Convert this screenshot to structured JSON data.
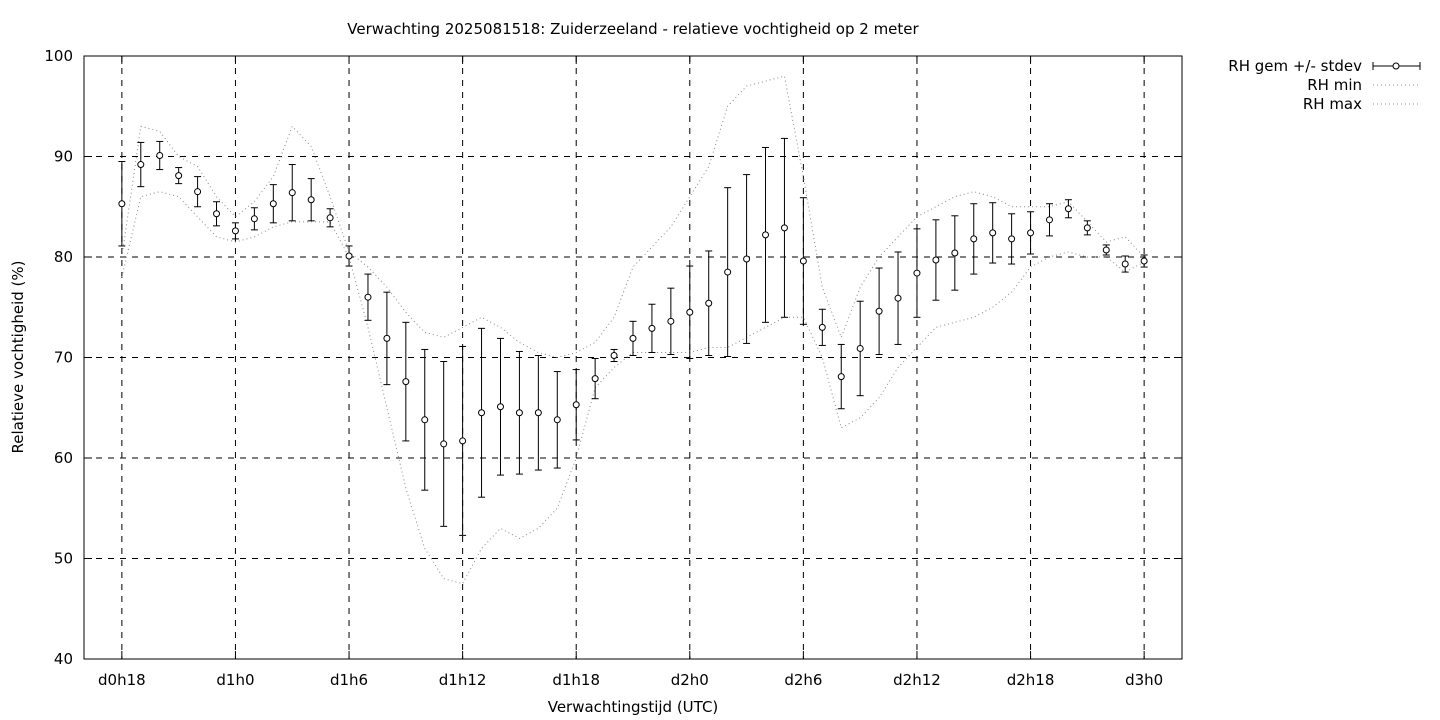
{
  "chart_data": {
    "type": "line",
    "title": "Verwachting 2025081518: Zuiderzeeland - relatieve vochtigheid op 2 meter",
    "xlabel": "Verwachtingstijd (UTC)",
    "ylabel": "Relatieve vochtigheid (%)",
    "ylim": [
      40,
      100
    ],
    "xlim": [
      -2,
      56
    ],
    "grid": true,
    "legend_position": "outside-top-right",
    "x_ticks": [
      {
        "x": 0,
        "label": "d0h18"
      },
      {
        "x": 6,
        "label": "d1h0"
      },
      {
        "x": 12,
        "label": "d1h6"
      },
      {
        "x": 18,
        "label": "d1h12"
      },
      {
        "x": 24,
        "label": "d1h18"
      },
      {
        "x": 30,
        "label": "d2h0"
      },
      {
        "x": 36,
        "label": "d2h6"
      },
      {
        "x": 42,
        "label": "d2h12"
      },
      {
        "x": 48,
        "label": "d2h18"
      },
      {
        "x": 54,
        "label": "d3h0"
      }
    ],
    "y_ticks": [
      40,
      50,
      60,
      70,
      80,
      90,
      100
    ],
    "x": [
      0,
      1,
      2,
      3,
      4,
      5,
      6,
      7,
      8,
      9,
      10,
      11,
      12,
      13,
      14,
      15,
      16,
      17,
      18,
      19,
      20,
      21,
      22,
      23,
      24,
      25,
      26,
      27,
      28,
      29,
      30,
      31,
      32,
      33,
      34,
      35,
      36,
      37,
      38,
      39,
      40,
      41,
      42,
      43,
      44,
      45,
      46,
      47,
      48,
      49,
      50,
      51,
      52,
      53,
      54
    ],
    "series": [
      {
        "name": "RH gem +/- stdev",
        "style": "points-errorbars",
        "values": [
          85.3,
          89.2,
          90.1,
          88.1,
          86.5,
          84.3,
          82.6,
          83.8,
          85.3,
          86.4,
          85.7,
          83.9,
          80.1,
          76.0,
          71.9,
          67.6,
          63.8,
          61.4,
          61.7,
          64.5,
          65.1,
          64.5,
          64.5,
          63.8,
          65.3,
          67.9,
          70.2,
          71.9,
          72.9,
          73.6,
          74.5,
          75.4,
          78.5,
          79.8,
          82.2,
          82.9,
          79.6,
          73.0,
          68.1,
          70.9,
          74.6,
          75.9,
          78.4,
          79.7,
          80.4,
          81.8,
          82.4,
          81.8,
          82.4,
          83.7,
          84.8,
          82.9,
          80.7,
          79.3,
          79.6
        ],
        "errors": [
          4.2,
          2.2,
          1.4,
          0.8,
          1.5,
          1.2,
          0.8,
          1.1,
          1.9,
          2.8,
          2.1,
          0.9,
          1.0,
          2.3,
          4.6,
          5.9,
          7.0,
          8.2,
          9.4,
          8.4,
          6.8,
          6.1,
          5.7,
          4.8,
          3.5,
          2.0,
          0.6,
          1.7,
          2.4,
          3.3,
          4.6,
          5.2,
          8.4,
          8.4,
          8.7,
          8.9,
          6.3,
          1.8,
          3.2,
          4.7,
          4.3,
          4.6,
          4.4,
          4.0,
          3.7,
          3.5,
          3.0,
          2.5,
          2.1,
          1.6,
          0.9,
          0.7,
          0.5,
          0.8,
          0.6
        ]
      },
      {
        "name": "RH min",
        "style": "dotted",
        "values": [
          78.0,
          86.0,
          86.5,
          86.0,
          84.0,
          82.0,
          81.5,
          82.0,
          83.0,
          83.5,
          83.5,
          83.5,
          80.0,
          73.0,
          65.0,
          57.0,
          51.0,
          48.0,
          47.5,
          51.0,
          53.0,
          52.0,
          53.0,
          55.0,
          60.0,
          67.0,
          69.0,
          70.5,
          70.5,
          70.5,
          70.5,
          71.0,
          71.0,
          72.0,
          73.0,
          74.0,
          74.0,
          70.0,
          63.0,
          64.0,
          66.0,
          69.0,
          71.0,
          73.0,
          73.5,
          74.0,
          75.0,
          76.5,
          79.0,
          80.0,
          80.5,
          80.0,
          80.0,
          78.5,
          79.5
        ]
      },
      {
        "name": "RH max",
        "style": "dotted",
        "values": [
          80.0,
          93.0,
          92.5,
          90.0,
          89.0,
          86.0,
          84.0,
          85.5,
          88.0,
          93.0,
          91.0,
          86.0,
          80.5,
          79.0,
          77.0,
          74.5,
          72.5,
          72.0,
          73.0,
          74.0,
          73.0,
          71.5,
          70.5,
          70.0,
          70.5,
          71.5,
          74.0,
          79.0,
          81.0,
          83.0,
          86.0,
          89.0,
          95.0,
          97.0,
          97.5,
          98.0,
          88.0,
          77.0,
          72.0,
          77.0,
          80.0,
          82.0,
          84.0,
          85.0,
          86.0,
          86.5,
          86.0,
          85.0,
          85.0,
          85.0,
          85.5,
          83.5,
          81.5,
          82.0,
          80.0
        ]
      }
    ]
  }
}
